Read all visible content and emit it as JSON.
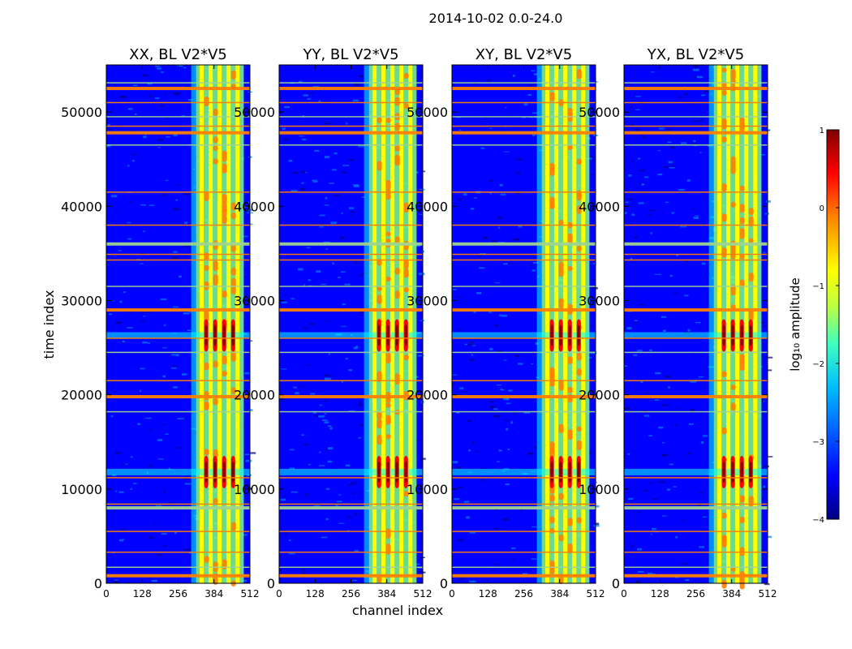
{
  "figure": {
    "suptitle": "2014-10-02 0.0-24.0",
    "xlabel": "channel index",
    "ylabel": "time index"
  },
  "chart_data": {
    "type": "heatmap",
    "x_range": [
      0,
      512
    ],
    "y_range": [
      0,
      55000
    ],
    "x_ticks": [
      "0",
      "128",
      "256",
      "384",
      "512"
    ],
    "y_ticks": [
      "0",
      "10000",
      "20000",
      "30000",
      "40000",
      "50000"
    ],
    "panels": [
      {
        "title": "XX, BL V2*V5"
      },
      {
        "title": "YY, BL V2*V5"
      },
      {
        "title": "XY, BL V2*V5"
      },
      {
        "title": "YX, BL V2*V5"
      }
    ],
    "colorbar": {
      "label": "log₁₀ amplitude",
      "range": [
        -4,
        1
      ],
      "ticks": [
        "1",
        "0",
        "−1",
        "−2",
        "−3",
        "−4"
      ]
    },
    "colormap": [
      "#00007f",
      "#0000ff",
      "#007fff",
      "#00ffff",
      "#7fff7f",
      "#ffff00",
      "#ff7f00",
      "#ff0000",
      "#7f0000"
    ],
    "features": {
      "flagged_rows_time": [
        800,
        1700,
        3300,
        5500,
        8000,
        8400,
        11200,
        18200,
        19800,
        21500,
        24500,
        26000,
        29000,
        31500,
        34300,
        34900,
        36000,
        38000,
        41500,
        46500,
        47800,
        48500,
        49500,
        51000,
        52500,
        53100
      ],
      "bright_channel_band": [
        320,
        490
      ],
      "bright_channel_lines": [
        340,
        372,
        404,
        436,
        468
      ],
      "strong_time_bursts": [
        11800,
        26300
      ]
    }
  }
}
